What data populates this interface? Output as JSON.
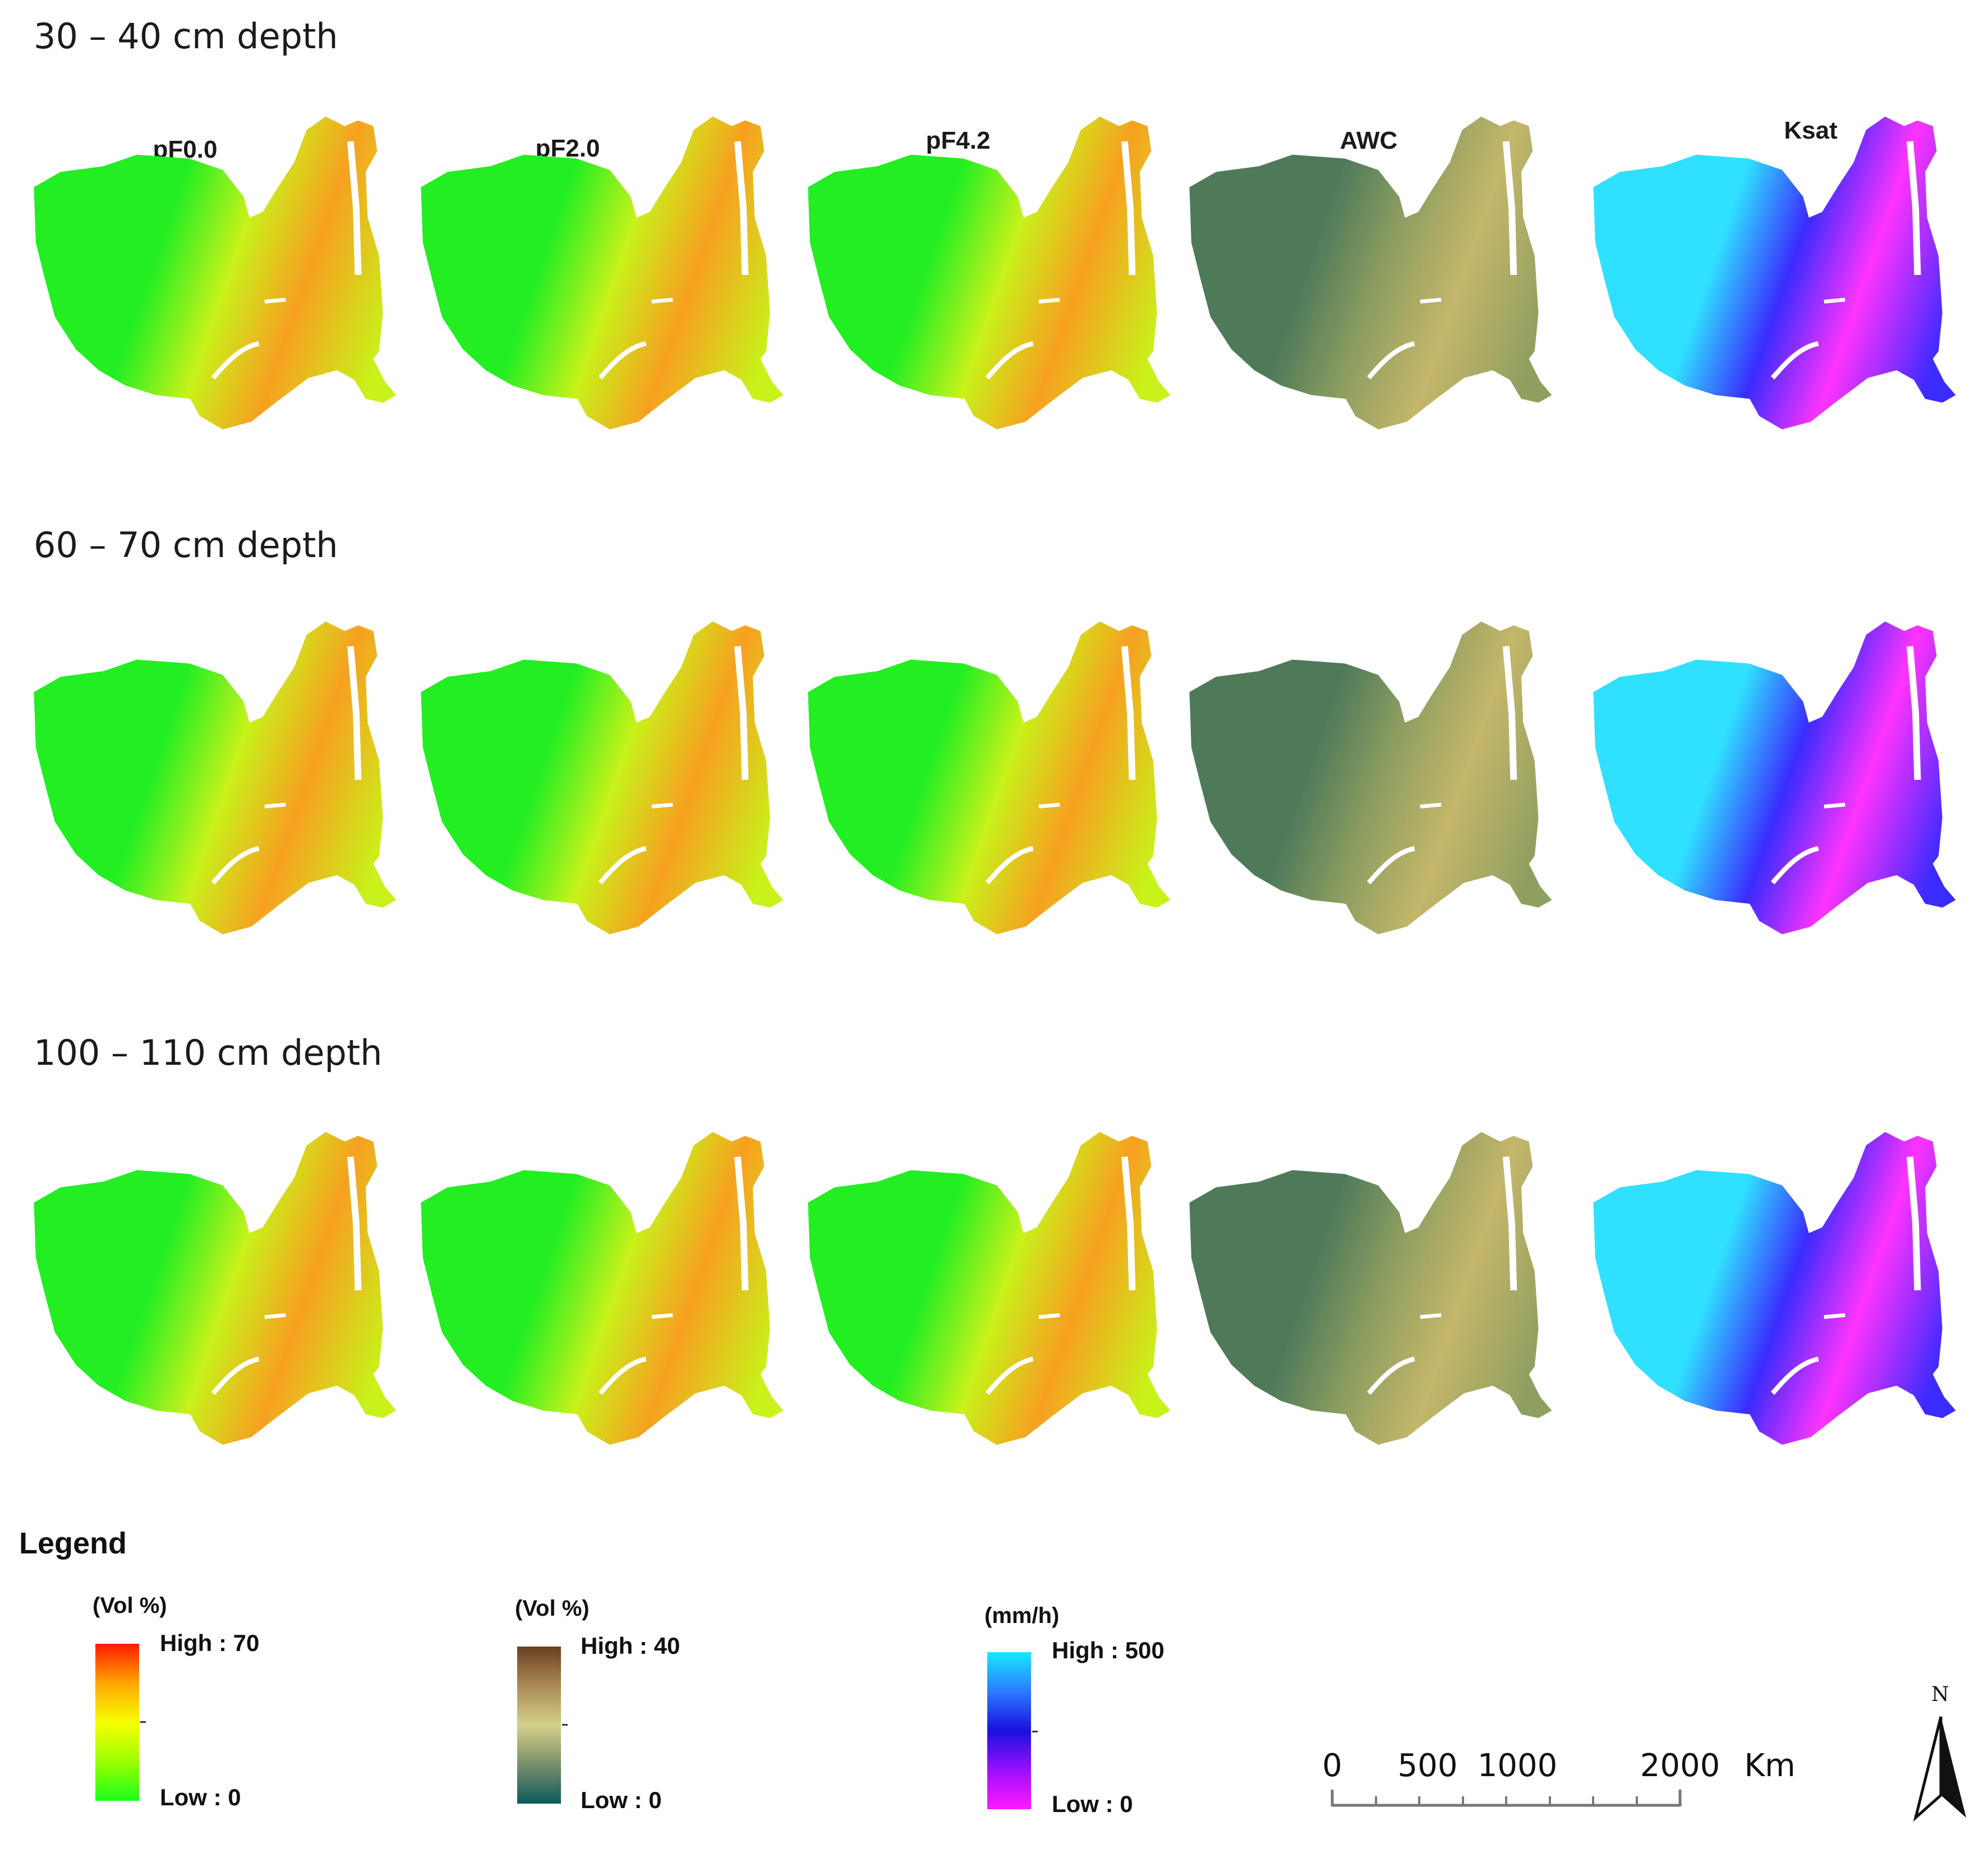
{
  "rows": [
    {
      "label": "30 – 40 cm depth"
    },
    {
      "label": "60 – 70 cm depth"
    },
    {
      "label": "100 – 110 cm depth"
    }
  ],
  "columns": [
    {
      "label": "pF0.0",
      "ramp": "water"
    },
    {
      "label": "pF2.0",
      "ramp": "water"
    },
    {
      "label": "pF4.2",
      "ramp": "water"
    },
    {
      "label": "AWC",
      "ramp": "awc"
    },
    {
      "label": "Ksat",
      "ramp": "ksat"
    }
  ],
  "legend": {
    "title": "Legend",
    "items": [
      {
        "unit": "(Vol %)",
        "high": "High : 70",
        "low": "Low : 0",
        "colors": [
          "#ff1a00",
          "#ffa500",
          "#f7ff00",
          "#9cff00",
          "#1aff1a"
        ]
      },
      {
        "unit": "(Vol %)",
        "high": "High : 40",
        "low": "Low : 0",
        "colors": [
          "#6b3f1f",
          "#a98a55",
          "#d4d08a",
          "#7a8f6a",
          "#0b5a5a"
        ]
      },
      {
        "unit": "(mm/h)",
        "high": "High : 500",
        "low": "Low : 0",
        "colors": [
          "#19e8ff",
          "#2a7bff",
          "#1a10e0",
          "#9a10ff",
          "#ff1aff"
        ]
      }
    ]
  },
  "scale_bar": {
    "labels": [
      "0",
      "500",
      "1000",
      "2000"
    ],
    "unit": "Km"
  },
  "north_arrow": {
    "label": "N"
  },
  "colors": {
    "water": {
      "low": "#22ee22",
      "mid": "#c8f21a",
      "high": "#f7a020"
    },
    "awc": {
      "low": "#4f7a5a",
      "mid": "#8f9f60",
      "high": "#c4b66a"
    },
    "ksat": {
      "low": "#30e0ff",
      "mid": "#3a2bff",
      "high": "#ff33ff"
    }
  }
}
